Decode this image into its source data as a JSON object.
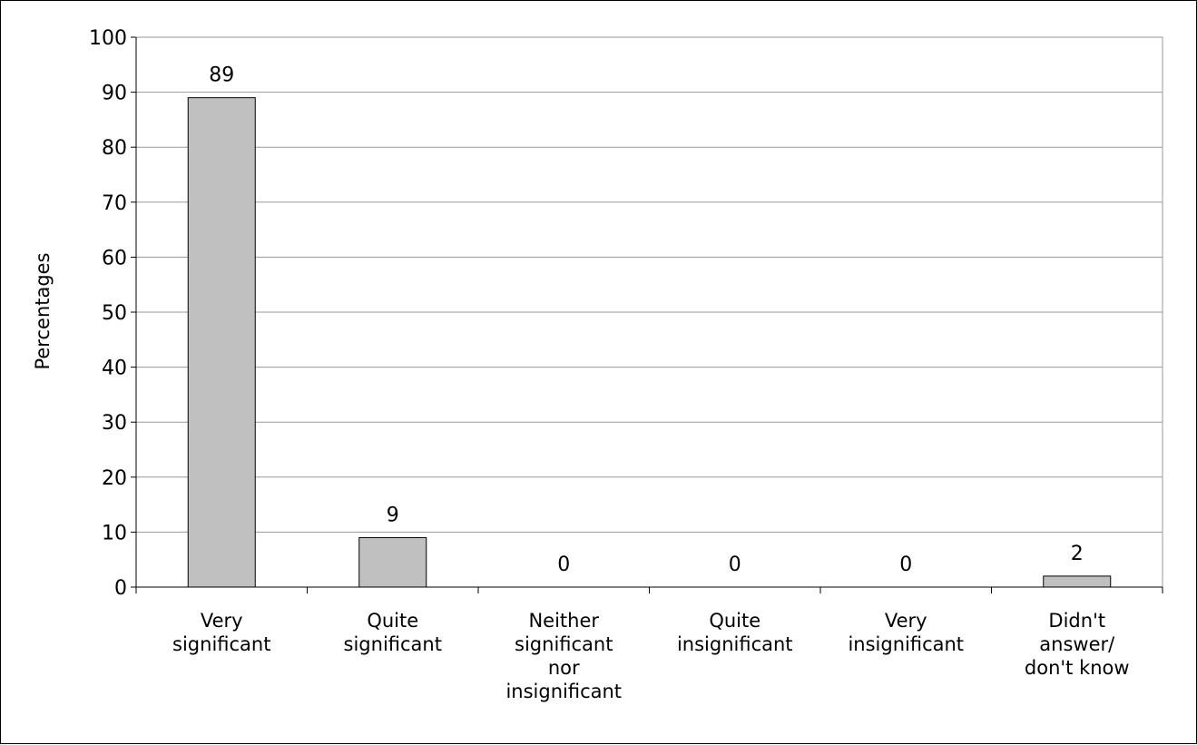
{
  "chart_data": {
    "type": "bar",
    "categories": [
      [
        "Very",
        "significant"
      ],
      [
        "Quite",
        "significant"
      ],
      [
        "Neither",
        "significant",
        "nor",
        "insignificant"
      ],
      [
        "Quite",
        "insignificant"
      ],
      [
        "Very",
        "insignificant"
      ],
      [
        "Didn't",
        "answer/",
        "don't know"
      ]
    ],
    "values": [
      89,
      9,
      0,
      0,
      0,
      2
    ],
    "data_labels": [
      "89",
      "9",
      "0",
      "0",
      "0",
      "2"
    ],
    "title": "",
    "xlabel": "",
    "ylabel": "Percentages",
    "ylim": [
      0,
      100
    ],
    "yticks": [
      "0",
      "10",
      "20",
      "30",
      "40",
      "50",
      "60",
      "70",
      "80",
      "90",
      "100"
    ],
    "grid": true,
    "legend": "none",
    "colors": {
      "bar_fill": "#c0c0c0",
      "bar_stroke": "#000000",
      "grid": "#9a9a9a"
    }
  }
}
